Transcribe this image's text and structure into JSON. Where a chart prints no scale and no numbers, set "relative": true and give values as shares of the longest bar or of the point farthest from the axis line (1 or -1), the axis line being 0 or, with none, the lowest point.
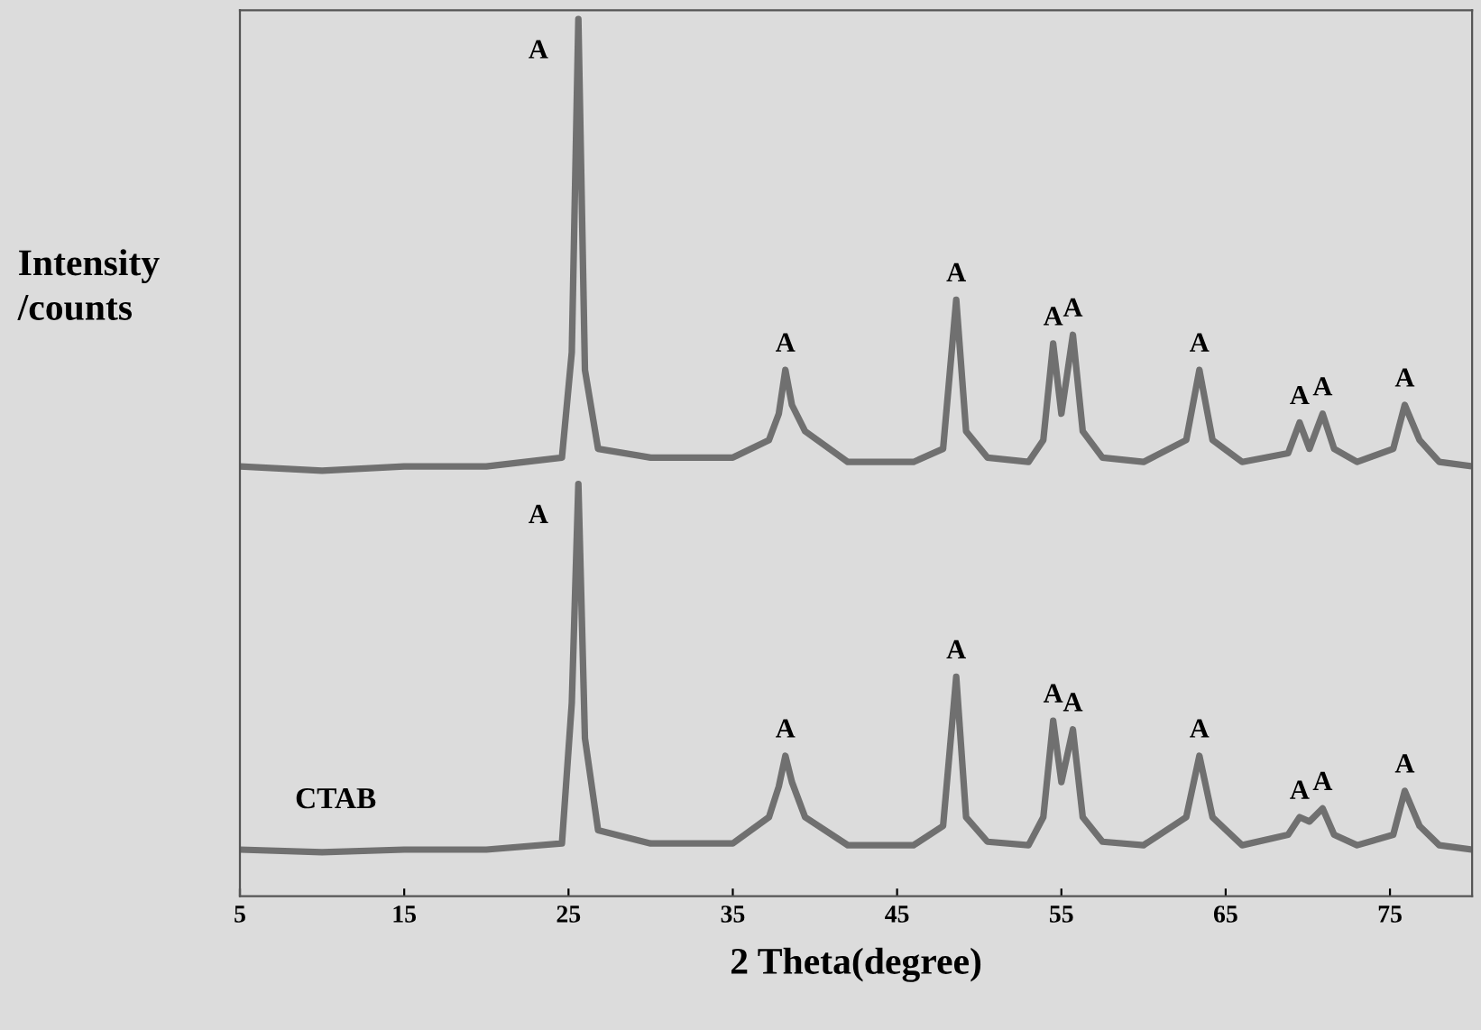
{
  "chart_data": {
    "type": "line",
    "relative": true,
    "xlabel": "2 Theta(degree)",
    "ylabel": "Intensity\n/counts",
    "xlim": [
      5,
      80
    ],
    "xticks": [
      5,
      15,
      25,
      35,
      45,
      55,
      65,
      75
    ],
    "grid": false,
    "legend": false,
    "marker": "none",
    "line_style": "solid",
    "x": [
      5,
      10,
      15,
      20,
      24.6,
      25.2,
      25.6,
      26.0,
      26.8,
      30,
      35,
      37.2,
      37.8,
      38.2,
      38.6,
      39.4,
      42,
      46,
      47.8,
      48.6,
      49.2,
      50.5,
      53,
      53.9,
      54.5,
      55.0,
      55.7,
      56.3,
      57.5,
      60,
      62.6,
      63.4,
      64.2,
      66,
      68.8,
      69.5,
      70.1,
      70.9,
      71.6,
      73,
      75.2,
      75.9,
      76.8,
      78,
      80
    ],
    "series": [
      {
        "color": "#707070",
        "values": [
          0.49,
          0.485,
          0.49,
          0.49,
          0.5,
          0.62,
          1.0,
          0.6,
          0.51,
          0.5,
          0.5,
          0.52,
          0.55,
          0.6,
          0.56,
          0.53,
          0.495,
          0.495,
          0.51,
          0.68,
          0.53,
          0.5,
          0.495,
          0.52,
          0.63,
          0.55,
          0.64,
          0.53,
          0.5,
          0.495,
          0.52,
          0.6,
          0.52,
          0.495,
          0.505,
          0.54,
          0.51,
          0.55,
          0.51,
          0.495,
          0.51,
          0.56,
          0.52,
          0.495,
          0.49
        ]
      },
      {
        "name": "CTAB",
        "color": "#707070",
        "values": [
          0.053,
          0.05,
          0.053,
          0.053,
          0.06,
          0.22,
          0.47,
          0.18,
          0.075,
          0.06,
          0.06,
          0.09,
          0.125,
          0.16,
          0.13,
          0.09,
          0.058,
          0.058,
          0.08,
          0.25,
          0.09,
          0.062,
          0.058,
          0.09,
          0.2,
          0.13,
          0.19,
          0.09,
          0.062,
          0.058,
          0.09,
          0.16,
          0.09,
          0.058,
          0.07,
          0.09,
          0.085,
          0.1,
          0.07,
          0.058,
          0.07,
          0.12,
          0.08,
          0.058,
          0.053
        ]
      }
    ],
    "annotations": [
      {
        "text": "A",
        "x": 25.6,
        "y": 1.0
      },
      {
        "text": "A",
        "x": 38.2,
        "y": 0.6
      },
      {
        "text": "A",
        "x": 48.6,
        "y": 0.68
      },
      {
        "text": "A",
        "x": 54.5,
        "y": 0.63
      },
      {
        "text": "A",
        "x": 55.7,
        "y": 0.64
      },
      {
        "text": "A",
        "x": 63.4,
        "y": 0.6
      },
      {
        "text": "A",
        "x": 69.5,
        "y": 0.54
      },
      {
        "text": "A",
        "x": 70.9,
        "y": 0.55
      },
      {
        "text": "A",
        "x": 75.9,
        "y": 0.56
      },
      {
        "text": "A",
        "x": 25.6,
        "y": 0.47
      },
      {
        "text": "A",
        "x": 38.2,
        "y": 0.16
      },
      {
        "text": "A",
        "x": 48.6,
        "y": 0.25
      },
      {
        "text": "A",
        "x": 54.5,
        "y": 0.2
      },
      {
        "text": "A",
        "x": 55.7,
        "y": 0.19
      },
      {
        "text": "A",
        "x": 63.4,
        "y": 0.16
      },
      {
        "text": "A",
        "x": 69.5,
        "y": 0.09
      },
      {
        "text": "A",
        "x": 70.9,
        "y": 0.1
      },
      {
        "text": "A",
        "x": 75.9,
        "y": 0.12
      }
    ]
  }
}
